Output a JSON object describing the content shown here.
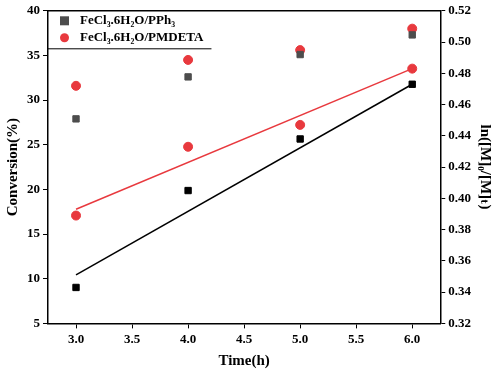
{
  "chart_data": {
    "type": "scatter",
    "x_label": "Time(h)",
    "y_label": "Conversion(%)",
    "y2_label": "ln([M]₀/[M]ₜ)",
    "xlim": [
      2.75,
      6.25
    ],
    "xticks": [
      {
        "value": 3,
        "label": "3.0"
      },
      {
        "value": 3.5,
        "label": "3.5"
      },
      {
        "value": 4,
        "label": "4.0"
      },
      {
        "value": 4.5,
        "label": "4.5"
      },
      {
        "value": 5,
        "label": "5.0"
      },
      {
        "value": 5.5,
        "label": "5.5"
      },
      {
        "value": 6,
        "label": "6.0"
      }
    ],
    "ylim": [
      5,
      40
    ],
    "yticks": [
      5,
      10,
      15,
      20,
      25,
      30,
      35,
      40
    ],
    "y2lim": [
      0.32,
      0.52
    ],
    "y2ticks": [
      {
        "value": 0.32,
        "label": "0.32"
      },
      {
        "value": 0.34,
        "label": "0.34"
      },
      {
        "value": 0.36,
        "label": "0.36"
      },
      {
        "value": 0.38,
        "label": "0.38"
      },
      {
        "value": 0.4,
        "label": "0.40"
      },
      {
        "value": 0.42,
        "label": "0.42"
      },
      {
        "value": 0.44,
        "label": "0.44"
      },
      {
        "value": 0.46,
        "label": "0.46"
      },
      {
        "value": 0.48,
        "label": "0.48"
      },
      {
        "value": 0.5,
        "label": "0.50"
      },
      {
        "value": 0.52,
        "label": "0.52"
      }
    ],
    "grid": false,
    "legend": "upper left",
    "series": [
      {
        "name": "FeCl₃.6H₂O/PPh₃",
        "type": "scatter",
        "color": "#4d4d4d",
        "marker": "square",
        "x": [
          3,
          4,
          5,
          6
        ],
        "values": [
          27.9,
          32.6,
          35.1,
          37.3
        ]
      },
      {
        "name": "FeCl₃.6H₂O/PMDETA",
        "type": "scatter",
        "color": "#e8393e",
        "marker": "circle",
        "x": [
          3,
          4,
          5,
          6
        ],
        "values": [
          31.6,
          34.5,
          35.6,
          38.0
        ]
      },
      {
        "name": "FeCl₃.6H₂O/PPh₃",
        "type": "scatter",
        "color": "#000000",
        "marker": "square",
        "axis": "y2",
        "x": [
          3,
          4,
          5,
          6
        ],
        "values": [
          0.343,
          0.405,
          0.438,
          0.473
        ]
      },
      {
        "name": "FeCl₃.6H₂O/PMDETA",
        "type": "scatter",
        "color": "#e8393e",
        "marker": "circle",
        "axis": "y2",
        "x": [
          3,
          4,
          5,
          6
        ],
        "values": [
          0.389,
          0.433,
          0.447,
          0.483
        ]
      },
      {
        "type": "line",
        "color": "#000000",
        "marker": "none",
        "line_style": "solid",
        "axis": "y2",
        "x": [
          3,
          6
        ],
        "values": [
          0.351,
          0.473
        ]
      },
      {
        "type": "line",
        "color": "#e8393e",
        "marker": "none",
        "line_style": "solid",
        "axis": "y2",
        "x": [
          3,
          6
        ],
        "values": [
          0.393,
          0.483
        ]
      }
    ]
  }
}
